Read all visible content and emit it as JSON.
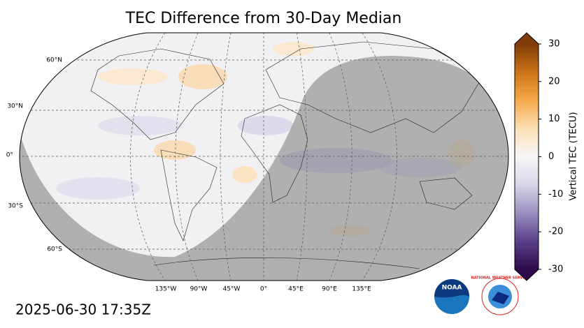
{
  "title": "TEC Difference from 30-Day Median",
  "latitude_labels": [
    "60°N",
    "30°N",
    "0°",
    "30°S",
    "60°S"
  ],
  "longitude_labels": [
    "135°W",
    "90°W",
    "45°W",
    "0°",
    "45°E",
    "90°E",
    "135°E"
  ],
  "timestamp": "2025-06-30 17:35Z",
  "colorbar": {
    "label": "Vertical TEC (TECU)",
    "lim": [
      -30,
      30
    ],
    "ticks": [
      30,
      20,
      10,
      0,
      -10,
      -20,
      -30
    ],
    "colors": [
      "#2d0b4a",
      "#5a3f8a",
      "#9a8fbf",
      "#d8d6e8",
      "#f7f7f7",
      "#fde0b5",
      "#f5a94a",
      "#cc7317",
      "#7f3b08"
    ]
  },
  "logos": {
    "noaa": "NOAA",
    "nws": "NATIONAL WEATHER SERVICE"
  }
}
